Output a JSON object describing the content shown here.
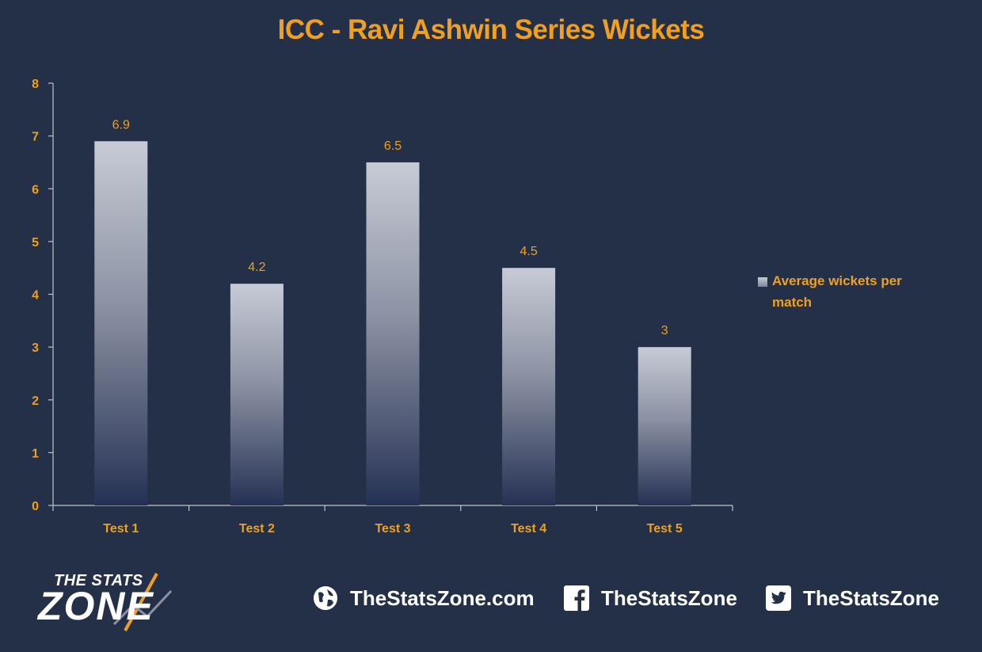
{
  "chart_data": {
    "type": "bar",
    "title": "ICC - Ravi Ashwin Series Wickets",
    "categories": [
      "Test 1",
      "Test 2",
      "Test 3",
      "Test 4",
      "Test 5"
    ],
    "series": [
      {
        "name": "Average wickets per match",
        "values": [
          6.9,
          4.2,
          6.5,
          4.5,
          3
        ]
      }
    ],
    "data_labels": [
      "6.9",
      "4.2",
      "6.5",
      "4.5",
      "3"
    ],
    "ylim": [
      0,
      8
    ],
    "yticks": [
      0,
      1,
      2,
      3,
      4,
      5,
      6,
      7,
      8
    ],
    "xlabel": "",
    "ylabel": "",
    "grid": false,
    "legend_position": "right"
  },
  "colors": {
    "background": "#243047",
    "accent": "#f0a01e",
    "bar_top": "#c7cbd6",
    "bar_bottom": "#253154",
    "axis": "#bfc4cf"
  },
  "footer": {
    "logo_line1": "THE STATS",
    "logo_line2": "ZONE",
    "website": "TheStatsZone.com",
    "facebook": "TheStatsZone",
    "twitter": "TheStatsZone",
    "icons": [
      "globe-icon",
      "facebook-icon",
      "twitter-icon"
    ]
  }
}
